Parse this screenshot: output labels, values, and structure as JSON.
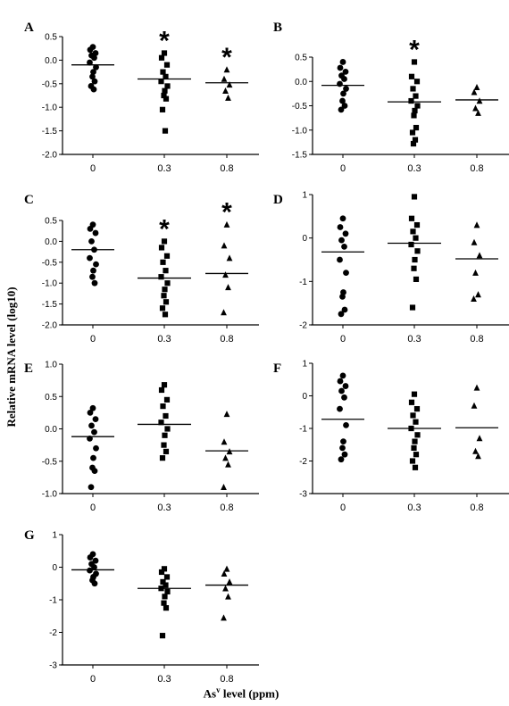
{
  "y_title": "Relative mRNA level (log10)",
  "x_title": {
    "prefix": "As",
    "sup": "v",
    "suffix": " level (ppm)"
  },
  "chart_data": [
    {
      "type": "scatter",
      "panel": "A",
      "categories": [
        "0",
        "0.3",
        "0.8"
      ],
      "ylim": [
        -2.0,
        0.5
      ],
      "yticks": [
        "0.5",
        "0.0",
        "-0.5",
        "-1.0",
        "-1.5",
        "-2.0"
      ],
      "markers": [
        "circle",
        "square",
        "triangle"
      ],
      "significant": [
        false,
        true,
        true
      ],
      "means": [
        -0.1,
        -0.4,
        -0.48
      ],
      "points": [
        [
          0.28,
          0.22,
          0.15,
          0.1,
          0.05,
          -0.05,
          -0.15,
          -0.25,
          -0.35,
          -0.45,
          -0.55,
          -0.62
        ],
        [
          0.15,
          0.05,
          -0.1,
          -0.25,
          -0.35,
          -0.45,
          -0.55,
          -0.65,
          -0.75,
          -0.82,
          -1.05,
          -1.5
        ],
        [
          -0.2,
          -0.4,
          -0.52,
          -0.65,
          -0.8
        ]
      ],
      "star_label": "*"
    },
    {
      "type": "scatter",
      "panel": "B",
      "categories": [
        "0",
        "0.3",
        "0.8"
      ],
      "ylim": [
        -1.5,
        0.5
      ],
      "yticks": [
        "0.5",
        "0.0",
        "-0.5",
        "-1.0",
        "-1.5"
      ],
      "markers": [
        "circle",
        "square",
        "triangle"
      ],
      "significant": [
        false,
        true,
        false
      ],
      "means": [
        -0.08,
        -0.42,
        -0.38
      ],
      "points": [
        [
          0.4,
          0.28,
          0.2,
          0.12,
          0.05,
          -0.05,
          -0.15,
          -0.25,
          -0.4,
          -0.5,
          -0.58
        ],
        [
          0.4,
          0.1,
          0.0,
          -0.15,
          -0.3,
          -0.4,
          -0.5,
          -0.6,
          -0.7,
          -0.95,
          -1.05,
          -1.2,
          -1.28
        ],
        [
          -0.12,
          -0.22,
          -0.4,
          -0.55,
          -0.65
        ]
      ],
      "star_label": "*"
    },
    {
      "type": "scatter",
      "panel": "C",
      "categories": [
        "0",
        "0.3",
        "0.8"
      ],
      "ylim": [
        -2.0,
        0.5
      ],
      "yticks": [
        "0.5",
        "0.0",
        "-0.5",
        "-1.0",
        "-1.5",
        "-2.0"
      ],
      "markers": [
        "circle",
        "square",
        "triangle"
      ],
      "significant": [
        false,
        true,
        true
      ],
      "means": [
        -0.2,
        -0.88,
        -0.77
      ],
      "points": [
        [
          0.4,
          0.3,
          0.2,
          0.0,
          -0.2,
          -0.4,
          -0.55,
          -0.7,
          -0.85,
          -1.0
        ],
        [
          0.0,
          -0.15,
          -0.35,
          -0.5,
          -0.7,
          -0.85,
          -1.0,
          -1.15,
          -1.3,
          -1.45,
          -1.6,
          -1.75
        ],
        [
          0.4,
          -0.1,
          -0.4,
          -0.8,
          -1.1,
          -1.7
        ]
      ],
      "star_label": "*"
    },
    {
      "type": "scatter",
      "panel": "D",
      "categories": [
        "0",
        "0.3",
        "0.8"
      ],
      "ylim": [
        -2,
        1
      ],
      "yticks": [
        "1",
        "0",
        "-1",
        "-2"
      ],
      "markers": [
        "circle",
        "square",
        "triangle"
      ],
      "significant": [
        false,
        false,
        false
      ],
      "means": [
        -0.32,
        -0.12,
        -0.48
      ],
      "points": [
        [
          0.45,
          0.25,
          0.1,
          -0.05,
          -0.2,
          -0.5,
          -0.8,
          -1.25,
          -1.35,
          -1.65,
          -1.75
        ],
        [
          0.95,
          0.45,
          0.3,
          0.15,
          0.0,
          -0.15,
          -0.3,
          -0.5,
          -0.7,
          -0.95,
          -1.6
        ],
        [
          0.3,
          -0.1,
          -0.4,
          -0.8,
          -1.3,
          -1.4
        ]
      ],
      "star_label": "*"
    },
    {
      "type": "scatter",
      "panel": "E",
      "categories": [
        "0",
        "0.3",
        "0.8"
      ],
      "ylim": [
        -1.0,
        1.0
      ],
      "yticks": [
        "1.0",
        "0.5",
        "0.0",
        "-0.5",
        "-1.0"
      ],
      "markers": [
        "circle",
        "square",
        "triangle"
      ],
      "significant": [
        false,
        false,
        false
      ],
      "means": [
        -0.12,
        0.07,
        -0.34
      ],
      "points": [
        [
          0.32,
          0.25,
          0.15,
          0.05,
          -0.05,
          -0.15,
          -0.3,
          -0.45,
          -0.6,
          -0.65,
          -0.9
        ],
        [
          0.68,
          0.6,
          0.45,
          0.35,
          0.2,
          0.1,
          0.0,
          -0.1,
          -0.25,
          -0.35,
          -0.45
        ],
        [
          0.23,
          -0.2,
          -0.35,
          -0.45,
          -0.55,
          -0.9
        ]
      ],
      "star_label": "*"
    },
    {
      "type": "scatter",
      "panel": "F",
      "categories": [
        "0",
        "0.3",
        "0.8"
      ],
      "ylim": [
        -3,
        1
      ],
      "yticks": [
        "1",
        "0",
        "-1",
        "-2",
        "-3"
      ],
      "markers": [
        "circle",
        "square",
        "triangle"
      ],
      "significant": [
        false,
        false,
        false
      ],
      "means": [
        -0.72,
        -1.0,
        -0.98
      ],
      "points": [
        [
          0.62,
          0.45,
          0.3,
          0.15,
          -0.05,
          -0.4,
          -0.9,
          -1.4,
          -1.6,
          -1.8,
          -1.95
        ],
        [
          0.05,
          -0.2,
          -0.4,
          -0.6,
          -0.8,
          -1.0,
          -1.2,
          -1.4,
          -1.6,
          -1.8,
          -2.0,
          -2.2
        ],
        [
          0.25,
          -0.3,
          -1.3,
          -1.7,
          -1.85
        ]
      ],
      "star_label": "*"
    },
    {
      "type": "scatter",
      "panel": "G",
      "categories": [
        "0",
        "0.3",
        "0.8"
      ],
      "ylim": [
        -3,
        1
      ],
      "yticks": [
        "1",
        "0",
        "-1",
        "-2",
        "-3"
      ],
      "markers": [
        "circle",
        "square",
        "triangle"
      ],
      "significant": [
        false,
        false,
        false
      ],
      "means": [
        -0.08,
        -0.65,
        -0.55
      ],
      "points": [
        [
          0.4,
          0.3,
          0.2,
          0.1,
          0.0,
          -0.1,
          -0.2,
          -0.3,
          -0.4,
          -0.5
        ],
        [
          -0.05,
          -0.15,
          -0.3,
          -0.45,
          -0.55,
          -0.65,
          -0.75,
          -0.9,
          -1.1,
          -1.25,
          -2.1
        ],
        [
          -0.05,
          -0.2,
          -0.45,
          -0.65,
          -0.9,
          -1.55
        ]
      ],
      "star_label": "*"
    }
  ]
}
